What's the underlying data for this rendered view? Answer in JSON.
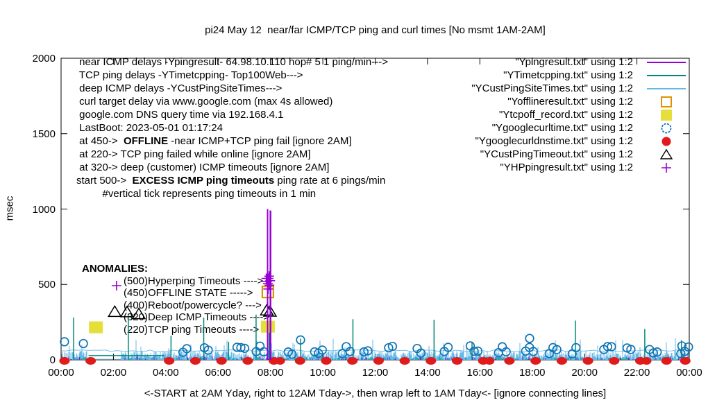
{
  "title": "pi24 May 12  near/far ICMP/TCP ping and curl times [No msmt 1AM-2AM]",
  "ylabel": "msec",
  "xlabel": "<-START at 2AM Yday, right to 12AM Tday->, then wrap left to 1AM Tday<- [ignore connecting lines]",
  "info_lines": [
    [
      {
        "t": " near ICMP delays -Ypingresult- 64.98.10.110 hop# 5 1 ping/min--->",
        "b": false
      }
    ],
    [
      {
        "t": " TCP ping delays -YTimetcpping- Top100Web--->",
        "b": false
      }
    ],
    [
      {
        "t": " deep ICMP delays -YCustPingSiteTimes--->",
        "b": false
      }
    ],
    [
      {
        "t": " curl target delay via www.google.com (max 4s allowed)",
        "b": false
      }
    ],
    [
      {
        "t": " google.com DNS query time via 192.168.4.1",
        "b": false
      }
    ],
    [
      {
        "t": " LastBoot: 2023-05-01 01:17:24",
        "b": false
      }
    ],
    [
      {
        "t": " at 450->  ",
        "b": false
      },
      {
        "t": "OFFLINE",
        "b": true
      },
      {
        "t": " -near ICMP+TCP ping fail [ignore 2AM]",
        "b": false
      }
    ],
    [
      {
        "t": " at 220-> TCP ping failed while online [ignore 2AM]",
        "b": false
      }
    ],
    [
      {
        "t": " at 320-> deep (customer) ICMP timeouts [ignore 2AM]",
        "b": false
      }
    ],
    [
      {
        "t": "start 500->  ",
        "b": false
      },
      {
        "t": "EXCESS ICMP ping timeouts",
        "b": true
      },
      {
        "t": " ping rate at 6 pings/min",
        "b": false
      }
    ],
    [
      {
        "t": "         #vertical tick represents ping timeouts in 1 min",
        "b": false
      }
    ]
  ],
  "anomalies": {
    "title": "ANOMALIES:",
    "items": [
      "(500)Hyperping Timeouts ---->",
      "(450)OFFLINE STATE ----->",
      "(400)Reboot/powercycle? --->",
      "(320)Deep ICMP Timeouts ---->",
      "(220)TCP ping Timeouts ---->"
    ]
  },
  "legend": [
    {
      "label": "\"Ypingresult.txt\" using 1:2",
      "symbol": "line",
      "color": "#9400d3"
    },
    {
      "label": "\"YTimetcpping.txt\" using 1:2",
      "symbol": "line",
      "color": "#00887a"
    },
    {
      "label": "\"YCustPingSiteTimes.txt\" using 1:2",
      "symbol": "line",
      "color": "#66b9e7"
    },
    {
      "label": "\"Yofflineresult.txt\" using 1:2",
      "symbol": "open-square",
      "color": "#e09200"
    },
    {
      "label": "\"Ytcpoff_record.txt\" using 1:2",
      "symbol": "filled-square",
      "color": "#e6df3a"
    },
    {
      "label": "\"Ygooglecurltime.txt\" using 1:2",
      "symbol": "open-circle",
      "color": "#0f74b4"
    },
    {
      "label": "\"Ygooglecurldnstime.txt\" using 1:2",
      "symbol": "filled-circle",
      "color": "#e01b1b"
    },
    {
      "label": "\"YCustPingTimeout.txt\" using 1:2",
      "symbol": "open-triangle",
      "color": "#000000"
    },
    {
      "label": "\"YHPpingresult.txt\" using 1:2",
      "symbol": "plus",
      "color": "#9400d3"
    }
  ],
  "axis": {
    "y_ticks": [
      "0",
      "500",
      "1000",
      "1500",
      "2000"
    ],
    "x_ticks": [
      "00:00",
      "02:00",
      "04:00",
      "06:00",
      "08:00",
      "10:00",
      "12:00",
      "14:00",
      "16:00",
      "18:00",
      "20:00",
      "22:00",
      "00:00"
    ]
  },
  "chart_data": {
    "type": "line",
    "title": "pi24 May 12  near/far ICMP/TCP ping and curl times [No msmt 1AM-2AM]",
    "xlabel": "<-START at 2AM Yday, right to 12AM Tday->, then wrap left to 1AM Tday<- [ignore connecting lines]",
    "ylabel": "msec",
    "ylim": [
      0,
      2000
    ],
    "xlim_hours": [
      0,
      24
    ],
    "grid": false,
    "legend_position": "top-right",
    "no_measurement_window_hours": [
      1.0,
      2.3
    ],
    "series": [
      {
        "name": "\"Ypingresult.txt\" using 1:2",
        "style": "impulses",
        "color": "#9400d3",
        "baseline_msec": [
          3,
          25
        ],
        "events": [
          {
            "t": 7.89,
            "msec": 1000
          },
          {
            "t": 8.0,
            "msec": 990
          }
        ]
      },
      {
        "name": "\"YTimetcpping.txt\" using 1:2",
        "style": "impulses",
        "color": "#00887a",
        "baseline_msec": [
          2,
          20
        ],
        "gap_line": {
          "t_start": 1.05,
          "t_end": 3.95,
          "msec": 28
        },
        "spikes": [
          [
            0.48,
            280
          ],
          [
            2.57,
            295
          ],
          [
            4.2,
            160
          ],
          [
            5.45,
            280
          ],
          [
            6.4,
            120
          ],
          [
            7.45,
            300
          ],
          [
            7.95,
            185
          ],
          [
            9.15,
            140
          ],
          [
            11.15,
            270
          ],
          [
            14.25,
            265
          ],
          [
            15.7,
            120
          ],
          [
            19.65,
            260
          ],
          [
            22.3,
            205
          ],
          [
            23.7,
            130
          ]
        ]
      },
      {
        "name": "\"YCustPingSiteTimes.txt\" using 1:2",
        "style": "impulses",
        "color": "#66b9e7",
        "baseline_msec": [
          5,
          60
        ],
        "occasional_spike_msec": [
          70,
          150
        ],
        "connect_line_msec": 60
      },
      {
        "name": "\"Yofflineresult.txt\" using 1:2",
        "style": "points",
        "marker": "open-square",
        "color": "#e09200",
        "points": [
          [
            7.9,
            450
          ]
        ]
      },
      {
        "name": "\"Ytcpoff_record.txt\" using 1:2",
        "style": "points",
        "marker": "filled-square",
        "color": "#e6df3a",
        "points": [
          [
            1.33,
            218
          ],
          [
            7.9,
            222
          ]
        ]
      },
      {
        "name": "\"Ygooglecurltime.txt\" using 1:2",
        "style": "points",
        "marker": "open-circle",
        "color": "#0f74b4",
        "typical_msec": [
          30,
          100
        ],
        "high_points": [
          [
            0.13,
            120
          ],
          [
            0.85,
            108
          ],
          [
            9.15,
            132
          ],
          [
            17.9,
            142
          ],
          [
            23.72,
            92
          ]
        ]
      },
      {
        "name": "\"Ygooglecurldnstime.txt\" using 1:2",
        "style": "points",
        "marker": "filled-circle",
        "color": "#e01b1b",
        "typical_msec": [
          0,
          10
        ],
        "hourly": true,
        "hours_offset": 0.13,
        "skip_hours": [
          2,
          3
        ],
        "extra_hours": [
          23.85
        ],
        "double_hours": [
          8,
          16,
          22
        ]
      },
      {
        "name": "\"YCustPingTimeout.txt\" using 1:2",
        "style": "points",
        "marker": "open-triangle",
        "color": "#000000",
        "points": [
          [
            2.05,
            320
          ],
          [
            2.52,
            318
          ],
          [
            2.97,
            305
          ],
          [
            7.86,
            330
          ],
          [
            7.98,
            322
          ]
        ]
      },
      {
        "name": "\"YHPpingresult.txt\" using 1:2",
        "style": "points",
        "marker": "plus",
        "color": "#9400d3",
        "points": [
          [
            2.12,
            492
          ],
          [
            7.84,
            540
          ],
          [
            7.87,
            520
          ],
          [
            7.9,
            505
          ],
          [
            7.93,
            540
          ],
          [
            7.96,
            495
          ],
          [
            7.99,
            525
          ],
          [
            7.91,
            470
          ],
          [
            7.95,
            555
          ]
        ]
      }
    ]
  }
}
